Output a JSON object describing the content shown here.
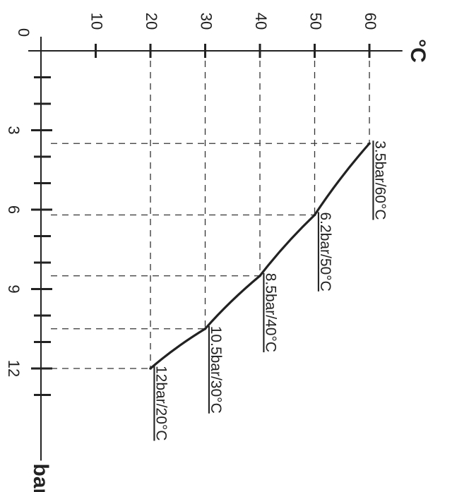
{
  "chart_data": {
    "type": "line",
    "title": "",
    "xlabel": "bar",
    "ylabel": "°C",
    "orientation": "rotated-90-clockwise",
    "xlim": [
      0,
      15
    ],
    "ylim": [
      0,
      65
    ],
    "x_major_ticks": [
      3,
      6,
      9,
      12
    ],
    "x_minor_ticks": [
      1,
      2,
      4,
      5,
      7,
      8,
      10,
      11,
      13
    ],
    "y_ticks": [
      10,
      20,
      30,
      40,
      50,
      60
    ],
    "x_tick_labels": [
      "3",
      "6",
      "9",
      "12"
    ],
    "y_tick_labels": [
      "10",
      "20",
      "30",
      "40",
      "50",
      "60"
    ],
    "origin_label": "0",
    "grid": "dashed guide lines to each data point",
    "series": [
      {
        "points": [
          {
            "x": 3.5,
            "y": 60,
            "label": "3.5bar/60°C"
          },
          {
            "x": 6.2,
            "y": 50,
            "label": "6.2bar/50°C"
          },
          {
            "x": 8.5,
            "y": 40,
            "label": "8.5bar/40°C"
          },
          {
            "x": 10.5,
            "y": 30,
            "label": "10.5bar/30°C"
          },
          {
            "x": 12,
            "y": 20,
            "label": "12bar/20°C"
          }
        ]
      }
    ]
  }
}
